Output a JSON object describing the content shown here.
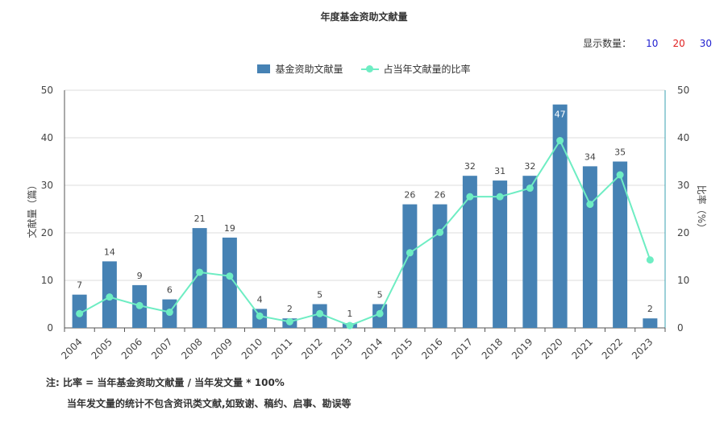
{
  "title": "年度基金资助文献量",
  "display_count": {
    "label": "显示数量：",
    "options": [
      {
        "value": "10",
        "color": "#2020d0"
      },
      {
        "value": "20",
        "color": "#e02020"
      },
      {
        "value": "30",
        "color": "#2020d0"
      }
    ]
  },
  "colors": {
    "bar": "#4682B4",
    "line": "#6EEDC3",
    "axis_right": "#3aa0b0"
  },
  "chart_data": {
    "type": "bar",
    "categories": [
      "2004",
      "2005",
      "2006",
      "2007",
      "2008",
      "2009",
      "2010",
      "2011",
      "2012",
      "2013",
      "2014",
      "2015",
      "2016",
      "2017",
      "2018",
      "2019",
      "2020",
      "2021",
      "2022",
      "2023"
    ],
    "series": [
      {
        "name": "基金资助文献量",
        "type": "bar",
        "axis": "left",
        "values": [
          7,
          14,
          9,
          6,
          21,
          19,
          4,
          2,
          5,
          1,
          5,
          26,
          26,
          32,
          31,
          32,
          47,
          34,
          35,
          2
        ]
      },
      {
        "name": "占当年文献量的比率",
        "type": "line",
        "axis": "right",
        "values": [
          3.0,
          6.5,
          4.7,
          3.3,
          11.7,
          10.9,
          2.5,
          1.3,
          3.0,
          0.5,
          3.0,
          15.8,
          20.1,
          27.6,
          27.6,
          29.4,
          39.4,
          26.0,
          32.2,
          14.3
        ]
      }
    ],
    "ylabel_left": "文献量（篇）",
    "ylabel_right": "比率（%）",
    "ylim_left": [
      0,
      50
    ],
    "ylim_right": [
      0,
      50
    ],
    "yticks": [
      0,
      10,
      20,
      30,
      40,
      50
    ],
    "grid": true,
    "legend": "top-center"
  },
  "notes": {
    "line1": "注:   比率 = 当年基金资助文献量 / 当年发文量 * 100%",
    "line2": "当年发文量的统计不包含资讯类文献,如致谢、稿约、启事、勘误等"
  }
}
